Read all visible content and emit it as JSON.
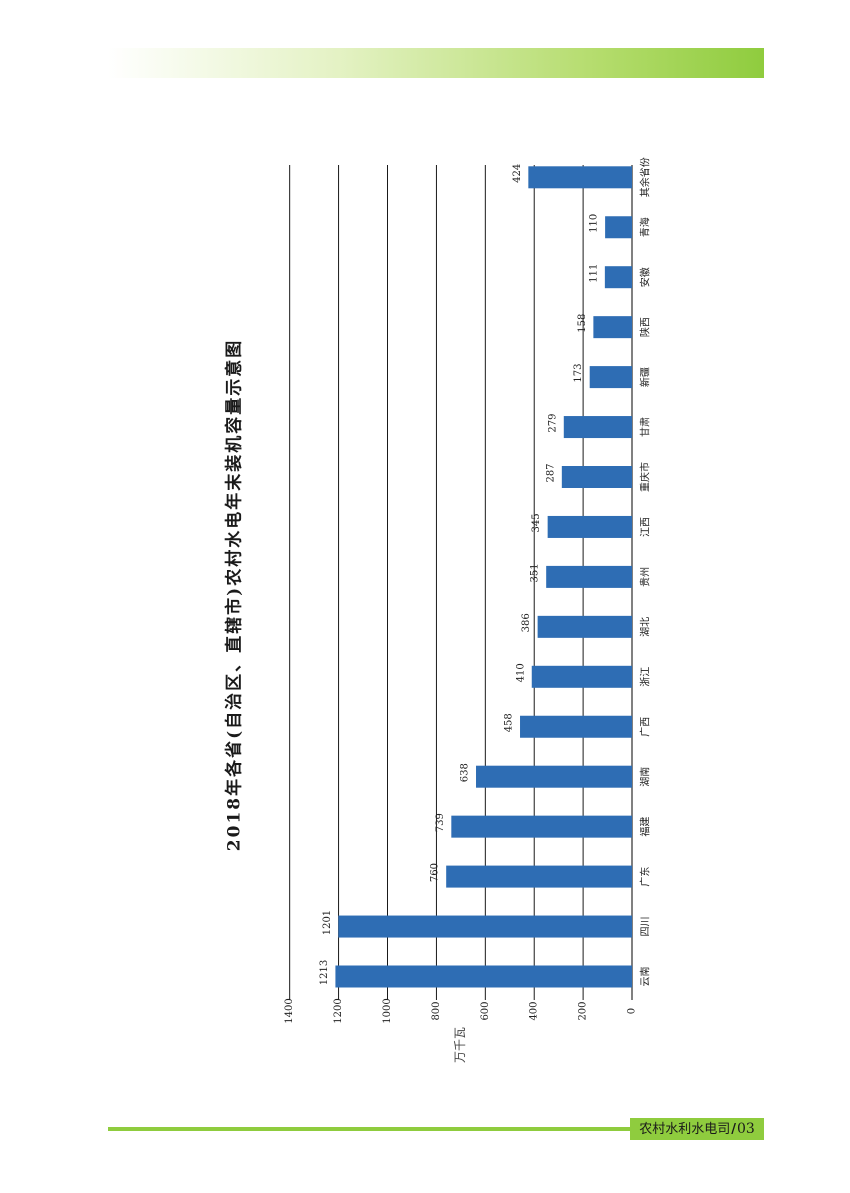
{
  "footer": {
    "publication": "农村水利水电司",
    "separator": "/",
    "page_number": "03"
  },
  "colors": {
    "bar": "#2e6db4",
    "banner_accent": "#8fcc3e",
    "gridline": "#000000"
  },
  "chart_data": {
    "type": "bar",
    "orientation": "rotated-90",
    "title": "2018年各省(自治区、直辖市)农村水电年末装机容量示意图",
    "ylabel": "万千瓦",
    "xlabel": "",
    "ylim": [
      0,
      1400
    ],
    "yticks": [
      0,
      200,
      400,
      600,
      800,
      1000,
      1200,
      1400
    ],
    "grid": true,
    "legend": "none",
    "categories": [
      "云南",
      "四川",
      "广东",
      "福建",
      "湖南",
      "广西",
      "浙江",
      "湖北",
      "贵州",
      "江西",
      "重庆市",
      "甘肃",
      "新疆",
      "陕西",
      "安徽",
      "青海",
      "其余省份"
    ],
    "values": [
      1213,
      1201,
      760,
      739,
      638,
      458,
      410,
      386,
      351,
      345,
      287,
      279,
      173,
      158,
      111,
      110,
      424
    ],
    "data_labels": [
      "1213",
      "1201",
      "760",
      "739",
      "638",
      "458",
      "410",
      "386",
      "351",
      "345",
      "287",
      "279",
      "173",
      "158",
      "111",
      "110",
      "424"
    ]
  }
}
